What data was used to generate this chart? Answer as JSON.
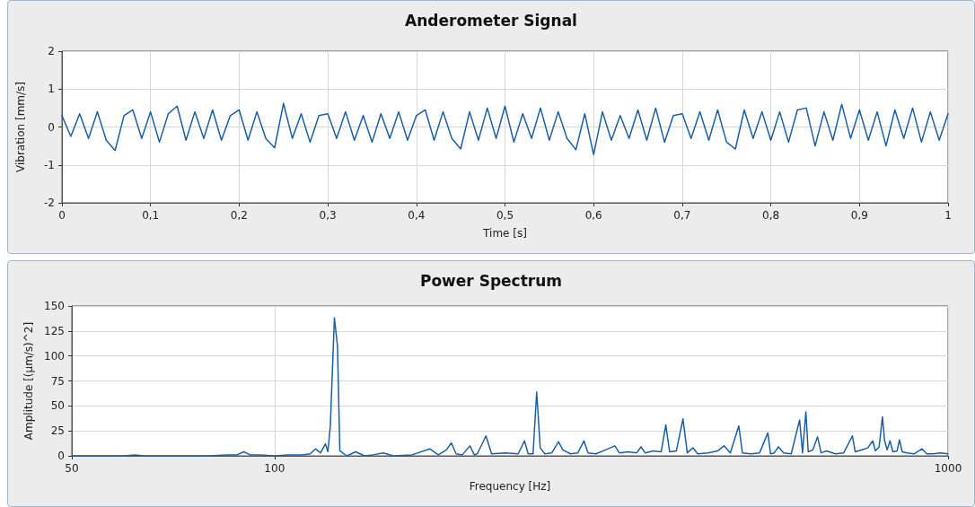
{
  "chart_data": [
    {
      "type": "line",
      "title": "Anderometer Signal",
      "xlabel": "Time [s]",
      "ylabel": "Vibration [mm/s]",
      "x": [
        0,
        0.01,
        0.02,
        0.03,
        0.04,
        0.05,
        0.06,
        0.07,
        0.08,
        0.09,
        0.1,
        0.11,
        0.12,
        0.13,
        0.14,
        0.15,
        0.16,
        0.17,
        0.18,
        0.19,
        0.2,
        0.21,
        0.22,
        0.23,
        0.24,
        0.25,
        0.26,
        0.27,
        0.28,
        0.29,
        0.3,
        0.31,
        0.32,
        0.33,
        0.34,
        0.35,
        0.36,
        0.37,
        0.38,
        0.39,
        0.4,
        0.41,
        0.42,
        0.43,
        0.44,
        0.45,
        0.46,
        0.47,
        0.48,
        0.49,
        0.5,
        0.51,
        0.52,
        0.53,
        0.54,
        0.55,
        0.56,
        0.57,
        0.58,
        0.59,
        0.6,
        0.61,
        0.62,
        0.63,
        0.64,
        0.65,
        0.66,
        0.67,
        0.68,
        0.69,
        0.7,
        0.71,
        0.72,
        0.73,
        0.74,
        0.75,
        0.76,
        0.77,
        0.78,
        0.79,
        0.8,
        0.81,
        0.82,
        0.83,
        0.84,
        0.85,
        0.86,
        0.87,
        0.88,
        0.89,
        0.9,
        0.91,
        0.92,
        0.93,
        0.94,
        0.95,
        0.96,
        0.97,
        0.98,
        0.99,
        1
      ],
      "series": [
        {
          "color": "#1b5fa3",
          "values": [
            0.3,
            -0.25,
            0.35,
            -0.3,
            0.4,
            -0.35,
            -0.62,
            0.3,
            0.45,
            -0.3,
            0.4,
            -0.4,
            0.35,
            0.55,
            -0.35,
            0.4,
            -0.3,
            0.45,
            -0.35,
            0.3,
            0.45,
            -0.35,
            0.4,
            -0.3,
            -0.55,
            0.62,
            -0.3,
            0.35,
            -0.4,
            0.3,
            0.35,
            -0.3,
            0.4,
            -0.35,
            0.3,
            -0.4,
            0.35,
            -0.3,
            0.4,
            -0.35,
            0.3,
            0.45,
            -0.35,
            0.4,
            -0.3,
            -0.58,
            0.4,
            -0.35,
            0.5,
            -0.3,
            0.55,
            -0.4,
            0.35,
            -0.3,
            0.5,
            -0.35,
            0.4,
            -0.3,
            -0.6,
            0.35,
            -0.73,
            0.4,
            -0.35,
            0.3,
            -0.3,
            0.45,
            -0.35,
            0.5,
            -0.4,
            0.3,
            0.35,
            -0.3,
            0.4,
            -0.35,
            0.45,
            -0.4,
            -0.58,
            0.45,
            -0.3,
            0.4,
            -0.35,
            0.4,
            -0.4,
            0.45,
            0.5,
            -0.5,
            0.4,
            -0.35,
            0.6,
            -0.3,
            0.45,
            -0.35,
            0.4,
            -0.5,
            0.45,
            -0.3,
            0.5,
            -0.4,
            0.4,
            -0.35,
            0.35
          ]
        }
      ],
      "xlim": [
        0,
        1
      ],
      "xticks": [
        0,
        {
          "value": 0.1,
          "label": "0,1"
        },
        {
          "value": 0.2,
          "label": "0,2"
        },
        {
          "value": 0.3,
          "label": "0,3"
        },
        {
          "value": 0.4,
          "label": "0,4"
        },
        {
          "value": 0.5,
          "label": "0,5"
        },
        {
          "value": 0.6,
          "label": "0,6"
        },
        {
          "value": 0.7,
          "label": "0,7"
        },
        {
          "value": 0.8,
          "label": "0,8"
        },
        {
          "value": 0.9,
          "label": "0,9"
        },
        1
      ],
      "ylim": [
        -2,
        2
      ],
      "yticks": [
        -2,
        -1,
        0,
        1,
        2
      ],
      "grid": true,
      "marker": "none",
      "line_style": "solid"
    },
    {
      "type": "line",
      "title": "Power Spectrum",
      "xlabel": "Frequency [Hz]",
      "ylabel": "Amplitude [(µm/s)^2]",
      "log": "x",
      "x": [
        50,
        55,
        60,
        62,
        64,
        70,
        80,
        85,
        88,
        90,
        92,
        95,
        100,
        105,
        110,
        113,
        115,
        117,
        119,
        120,
        121,
        122.7,
        124,
        125,
        128,
        132,
        136,
        140,
        145,
        150,
        160,
        170,
        175,
        180,
        183,
        186,
        190,
        195,
        198,
        200,
        206,
        210,
        220,
        230,
        235,
        238,
        242,
        245,
        248,
        252,
        258,
        264,
        268,
        275,
        282,
        288,
        292,
        300,
        310,
        320,
        325,
        335,
        345,
        350,
        355,
        365,
        375,
        381,
        386,
        395,
        404,
        410,
        418,
        425,
        440,
        455,
        465,
        475,
        489,
        495,
        510,
        525,
        540,
        545,
        552,
        560,
        570,
        585,
        602,
        608,
        615,
        620,
        630,
        640,
        648,
        660,
        680,
        700,
        721,
        728,
        745,
        760,
        773,
        780,
        790,
        799,
        805,
        812,
        820,
        828,
        840,
        847,
        855,
        870,
        890,
        915,
        930,
        950,
        975,
        1000
      ],
      "series": [
        {
          "color": "#1b5fa3",
          "values": [
            0,
            0,
            0,
            1,
            0,
            0,
            0,
            1,
            1,
            4,
            1,
            1,
            0,
            1,
            1,
            2,
            7,
            3,
            12,
            4,
            30,
            138,
            110,
            5,
            0,
            4,
            0,
            1,
            3,
            0,
            1,
            7,
            1,
            6,
            13,
            2,
            1,
            10,
            1,
            2,
            20,
            2,
            3,
            2,
            15,
            2,
            2,
            64,
            8,
            2,
            3,
            14,
            6,
            2,
            3,
            15,
            3,
            2,
            6,
            10,
            3,
            4,
            3,
            9,
            3,
            5,
            4,
            31,
            4,
            5,
            37,
            3,
            8,
            2,
            3,
            5,
            10,
            3,
            30,
            3,
            2,
            3,
            23,
            2,
            3,
            9,
            3,
            2,
            36,
            3,
            44,
            4,
            6,
            19,
            3,
            5,
            2,
            3,
            20,
            4,
            6,
            8,
            15,
            5,
            9,
            39,
            15,
            6,
            15,
            4,
            5,
            16,
            4,
            3,
            2,
            7,
            2,
            2,
            3,
            2
          ]
        }
      ],
      "xlim": [
        50,
        1000
      ],
      "xticks": [
        50,
        100,
        1000
      ],
      "ylim": [
        0,
        150
      ],
      "yticks": [
        0,
        25,
        50,
        75,
        100,
        125,
        150
      ],
      "grid": true,
      "marker": "none",
      "line_style": "solid"
    }
  ]
}
